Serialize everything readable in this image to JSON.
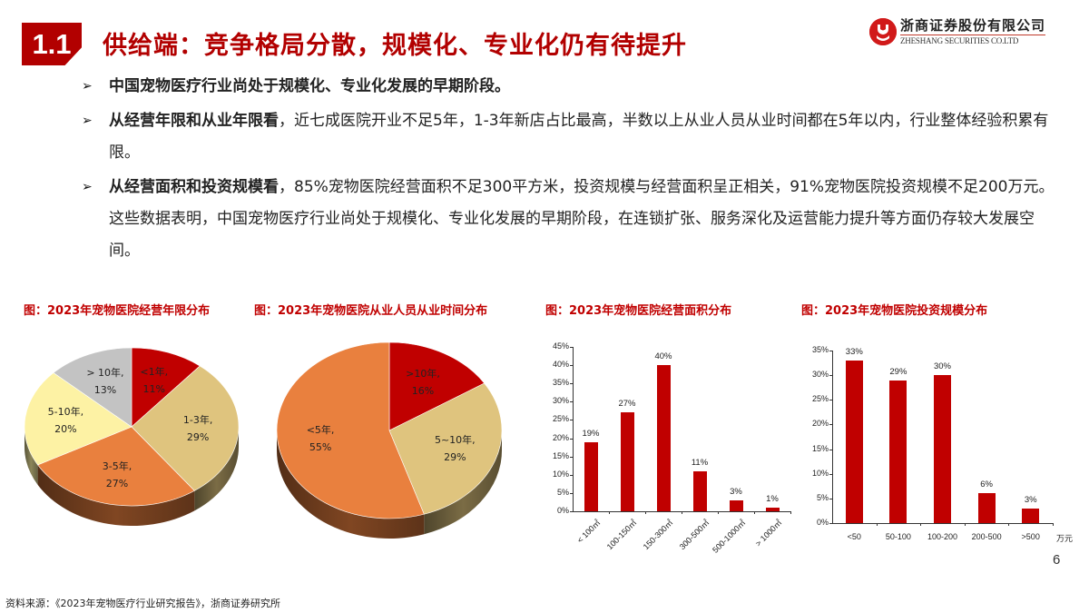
{
  "header": {
    "section_number": "1.1",
    "title": "供给端：竞争格局分散，规模化、专业化仍有待提升",
    "logo": {
      "cn": "浙商证券股份有限公司",
      "en": "ZHESHANG SECURITIES CO.LTD",
      "icon": "zheshang-logo-icon"
    }
  },
  "bullets": [
    {
      "icon": "arrow-bullet-icon",
      "bold": "中国宠物医疗行业尚处于规模化、专业化发展的早期阶段。",
      "text": ""
    },
    {
      "icon": "arrow-bullet-icon",
      "bold": "从经营年限和从业年限看",
      "text": "，近七成医院开业不足5年，1-3年新店占比最高，半数以上从业人员从业时间都在5年以内，行业整体经验积累有限。"
    },
    {
      "icon": "arrow-bullet-icon",
      "bold": "从经营面积和投资规模看",
      "text": "，85%宠物医院经营面积不足300平方米，投资规模与经营面积呈正相关，91%宠物医院投资规模不足200万元。这些数据表明，中国宠物医疗行业尚处于规模化、专业化发展的早期阶段，在连锁扩张、服务深化及运营能力提升等方面仍存较大发展空间。"
    }
  ],
  "colors": {
    "brand_red": "#b20000",
    "bar_red": "#c00000",
    "pie_red": "#c00000",
    "pie_tan": "#dfc47e",
    "pie_orange": "#e9803e",
    "pie_yellow": "#fdf2a4",
    "pie_gray": "#c3c3c3"
  },
  "chart_data": [
    {
      "type": "pie",
      "title": "图：2023年宠物医院经营年限分布",
      "categories": [
        "<1年",
        "1-3年",
        "3-5年",
        "5-10年",
        "> 10年"
      ],
      "values": [
        11,
        29,
        27,
        20,
        13
      ],
      "labels": [
        "<1年,",
        "1-3年,",
        "3-5年,",
        "5-10年,",
        "> 10年,"
      ],
      "value_labels": [
        "11%",
        "29%",
        "27%",
        "20%",
        "13%"
      ],
      "colors": [
        "#c00000",
        "#dfc47e",
        "#e9803e",
        "#fdf2a4",
        "#c3c3c3"
      ],
      "unit": "%",
      "style": "3d"
    },
    {
      "type": "pie",
      "title": "图：2023年宠物医院从业人员从业时间分布",
      "categories": [
        ">10年",
        "5~10年",
        "<5年"
      ],
      "values": [
        16,
        29,
        55
      ],
      "labels": [
        ">10年,",
        "5~10年,",
        "<5年,"
      ],
      "value_labels": [
        "16%",
        "29%",
        "55%"
      ],
      "colors": [
        "#c00000",
        "#dfc47e",
        "#e9803e"
      ],
      "unit": "%",
      "style": "3d"
    },
    {
      "type": "bar",
      "title": "图：2023年宠物医院经营面积分布",
      "categories": [
        "< 100㎡",
        "100-150㎡",
        "150-300㎡",
        "300-500㎡",
        "500-1000㎡",
        "> 1000㎡"
      ],
      "values": [
        19,
        27,
        40,
        11,
        3,
        1
      ],
      "value_labels": [
        "19%",
        "27%",
        "40%",
        "11%",
        "3%",
        "1%"
      ],
      "xlabel": "",
      "ylabel": "",
      "ylim": [
        0,
        45
      ],
      "yticks": [
        "0%",
        "5%",
        "10%",
        "15%",
        "20%",
        "25%",
        "30%",
        "35%",
        "40%",
        "45%"
      ],
      "grid": false,
      "color": "#c00000"
    },
    {
      "type": "bar",
      "title": "图：2023年宠物医院投资规模分布",
      "categories": [
        "<50",
        "50-100",
        "100-200",
        "200-500",
        ">500"
      ],
      "values": [
        33,
        29,
        30,
        6,
        3
      ],
      "value_labels": [
        "33%",
        "29%",
        "30%",
        "6%",
        "3%"
      ],
      "xlabel": "万元",
      "ylabel": "",
      "ylim": [
        0,
        35
      ],
      "yticks": [
        "0%",
        "5%",
        "10%",
        "15%",
        "20%",
        "25%",
        "30%",
        "35%"
      ],
      "grid": false,
      "color": "#c00000"
    }
  ],
  "footer": {
    "page_number": "6",
    "source": "资料来源：《2023年宠物医疗行业研究报告》，浙商证券研究所"
  }
}
